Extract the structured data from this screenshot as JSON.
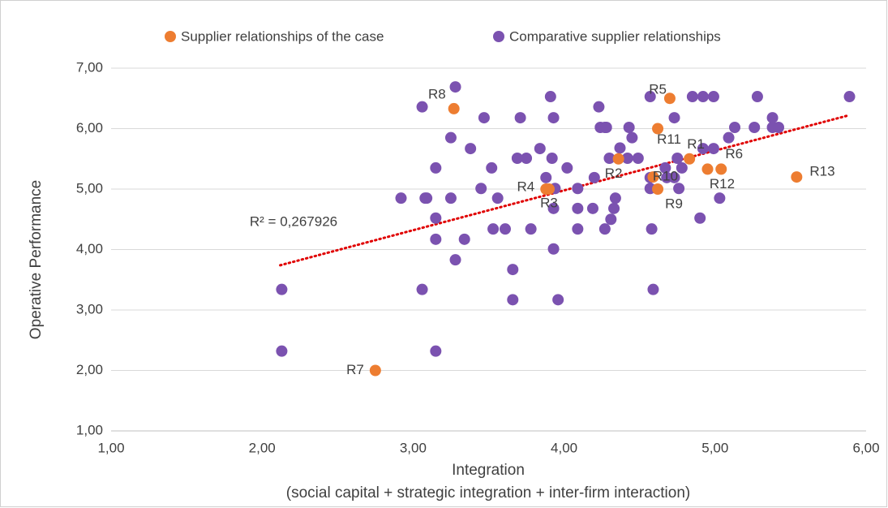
{
  "chart_data": {
    "type": "scatter",
    "xlabel": [
      "Integration",
      "(social capital + strategic integration + inter-firm interaction)"
    ],
    "ylabel": "Operative Performance",
    "xlim": [
      1,
      6
    ],
    "ylim": [
      1,
      7
    ],
    "xticks": [
      {
        "value": 1,
        "label": "1,00"
      },
      {
        "value": 2,
        "label": "2,00"
      },
      {
        "value": 3,
        "label": "3,00"
      },
      {
        "value": 4,
        "label": "4,00"
      },
      {
        "value": 5,
        "label": "5,00"
      },
      {
        "value": 6,
        "label": "6,00"
      }
    ],
    "yticks": [
      {
        "value": 1,
        "label": "1,00"
      },
      {
        "value": 2,
        "label": "2,00"
      },
      {
        "value": 3,
        "label": "3,00"
      },
      {
        "value": 4,
        "label": "4,00"
      },
      {
        "value": 5,
        "label": "5,00"
      },
      {
        "value": 6,
        "label": "6,00"
      },
      {
        "value": 7,
        "label": "7,00"
      }
    ],
    "grid": true,
    "legend": "top",
    "series": [
      {
        "name": "Supplier relationships of the case",
        "color": "#ed7d31",
        "labels": [
          "R8",
          "R5",
          "R11",
          "R1",
          "R6",
          "R12",
          "R13",
          "R9",
          "R10",
          "R2",
          "R4",
          "R3",
          "R7"
        ],
        "x": [
          3.27,
          4.7,
          4.62,
          4.83,
          5.04,
          4.95,
          5.54,
          4.62,
          4.59,
          4.36,
          3.88,
          3.9,
          2.75
        ],
        "values": [
          6.33,
          6.5,
          6.0,
          5.5,
          5.33,
          5.33,
          5.2,
          5.0,
          5.2,
          5.5,
          5.0,
          5.0,
          2.0
        ]
      },
      {
        "name": "Comparative supplier relationships",
        "color": "#7b52b0",
        "x": [
          2.13,
          2.92,
          3.06,
          3.09,
          3.28,
          3.47,
          3.25,
          3.38,
          3.15,
          3.52,
          3.08,
          3.25,
          3.45,
          3.56,
          3.15,
          3.15,
          3.34,
          3.53,
          3.61,
          3.78,
          3.28,
          3.66,
          3.93,
          3.06,
          2.13,
          3.66,
          3.96,
          3.15,
          3.71,
          3.69,
          3.75,
          3.88,
          3.84,
          3.91,
          3.93,
          3.92,
          3.94,
          4.02,
          3.93,
          4.09,
          4.09,
          4.09,
          4.19,
          4.24,
          4.27,
          4.23,
          4.28,
          4.3,
          4.2,
          4.33,
          4.31,
          4.27,
          4.34,
          4.45,
          4.43,
          4.37,
          4.42,
          4.49,
          4.57,
          4.57,
          4.57,
          4.58,
          4.59,
          4.73,
          4.75,
          4.78,
          4.76,
          4.73,
          4.68,
          4.67,
          4.92,
          4.85,
          4.99,
          4.99,
          4.92,
          4.9,
          5.03,
          5.09,
          5.13,
          5.26,
          5.28,
          5.38,
          5.38,
          5.42,
          5.89
        ],
        "values": [
          2.32,
          4.85,
          6.36,
          4.85,
          6.69,
          6.18,
          5.85,
          5.67,
          5.35,
          5.35,
          4.85,
          4.85,
          5.01,
          4.85,
          4.52,
          4.17,
          4.17,
          4.34,
          4.34,
          4.34,
          3.83,
          3.67,
          4.01,
          3.34,
          3.34,
          3.17,
          3.17,
          2.32,
          6.18,
          5.51,
          5.51,
          5.19,
          5.67,
          6.53,
          6.18,
          5.51,
          5.01,
          5.35,
          4.68,
          4.68,
          5.01,
          4.34,
          4.68,
          6.02,
          6.02,
          6.36,
          6.02,
          5.51,
          5.19,
          4.68,
          4.5,
          4.34,
          4.85,
          5.85,
          6.02,
          5.68,
          5.51,
          5.51,
          6.53,
          5.19,
          5.01,
          4.34,
          3.34,
          6.18,
          5.51,
          5.35,
          5.01,
          5.19,
          5.19,
          5.35,
          6.53,
          6.53,
          6.53,
          5.67,
          5.67,
          4.52,
          4.85,
          5.85,
          6.02,
          6.02,
          6.53,
          6.18,
          6.02,
          6.02,
          6.53
        ]
      }
    ],
    "trendline": {
      "color": "#e00000",
      "x": [
        2.12,
        5.87
      ],
      "values": [
        3.74,
        6.21
      ]
    },
    "annotation": "R² = 0,267926"
  }
}
